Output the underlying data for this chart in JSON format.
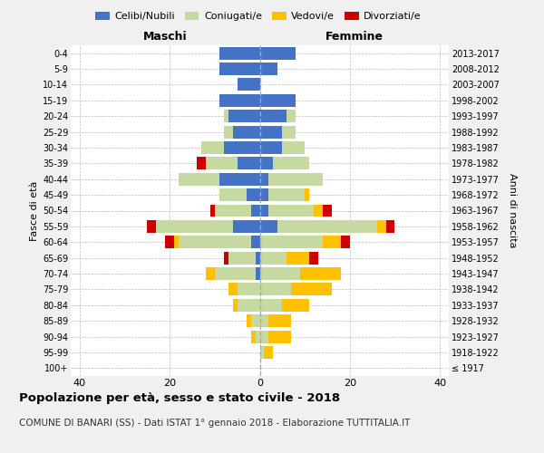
{
  "age_groups": [
    "100+",
    "95-99",
    "90-94",
    "85-89",
    "80-84",
    "75-79",
    "70-74",
    "65-69",
    "60-64",
    "55-59",
    "50-54",
    "45-49",
    "40-44",
    "35-39",
    "30-34",
    "25-29",
    "20-24",
    "15-19",
    "10-14",
    "5-9",
    "0-4"
  ],
  "birth_years": [
    "≤ 1917",
    "1918-1922",
    "1923-1927",
    "1928-1932",
    "1933-1937",
    "1938-1942",
    "1943-1947",
    "1948-1952",
    "1953-1957",
    "1958-1962",
    "1963-1967",
    "1968-1972",
    "1973-1977",
    "1978-1982",
    "1983-1987",
    "1988-1992",
    "1993-1997",
    "1998-2002",
    "2003-2007",
    "2008-2012",
    "2013-2017"
  ],
  "males": {
    "celibi": [
      0,
      0,
      0,
      0,
      0,
      0,
      1,
      1,
      2,
      6,
      2,
      3,
      9,
      5,
      8,
      6,
      7,
      9,
      5,
      9,
      9
    ],
    "coniugati": [
      0,
      0,
      1,
      2,
      5,
      5,
      9,
      6,
      16,
      17,
      8,
      6,
      9,
      7,
      5,
      2,
      1,
      0,
      0,
      0,
      0
    ],
    "vedovi": [
      0,
      0,
      1,
      1,
      1,
      2,
      2,
      0,
      1,
      0,
      0,
      0,
      0,
      0,
      0,
      0,
      0,
      0,
      0,
      0,
      0
    ],
    "divorziati": [
      0,
      0,
      0,
      0,
      0,
      0,
      0,
      1,
      2,
      2,
      1,
      0,
      0,
      2,
      0,
      0,
      0,
      0,
      0,
      0,
      0
    ]
  },
  "females": {
    "nubili": [
      0,
      0,
      0,
      0,
      0,
      0,
      0,
      0,
      0,
      4,
      2,
      2,
      2,
      3,
      5,
      5,
      6,
      8,
      0,
      4,
      8
    ],
    "coniugate": [
      0,
      1,
      2,
      2,
      5,
      7,
      9,
      6,
      14,
      22,
      10,
      8,
      12,
      8,
      5,
      3,
      2,
      0,
      0,
      0,
      0
    ],
    "vedove": [
      0,
      2,
      5,
      5,
      6,
      9,
      9,
      5,
      4,
      2,
      2,
      1,
      0,
      0,
      0,
      0,
      0,
      0,
      0,
      0,
      0
    ],
    "divorziate": [
      0,
      0,
      0,
      0,
      0,
      0,
      0,
      2,
      2,
      2,
      2,
      0,
      0,
      0,
      0,
      0,
      0,
      0,
      0,
      0,
      0
    ]
  },
  "colors": {
    "celibi_nubili": "#4472c4",
    "coniugati": "#c5d9a0",
    "vedovi": "#ffc000",
    "divorziati": "#cc0000"
  },
  "xlim": 42,
  "title": "Popolazione per età, sesso e stato civile - 2018",
  "subtitle": "COMUNE DI BANARI (SS) - Dati ISTAT 1° gennaio 2018 - Elaborazione TUTTITALIA.IT",
  "ylabel_left": "Fasce di età",
  "ylabel_right": "Anni di nascita",
  "xlabel_left": "Maschi",
  "xlabel_right": "Femmine",
  "bg_color": "#f0f0f0",
  "plot_bg": "#ffffff",
  "legend_labels": [
    "Celibi/Nubili",
    "Coniugati/e",
    "Vedovi/e",
    "Divorziati/e"
  ]
}
